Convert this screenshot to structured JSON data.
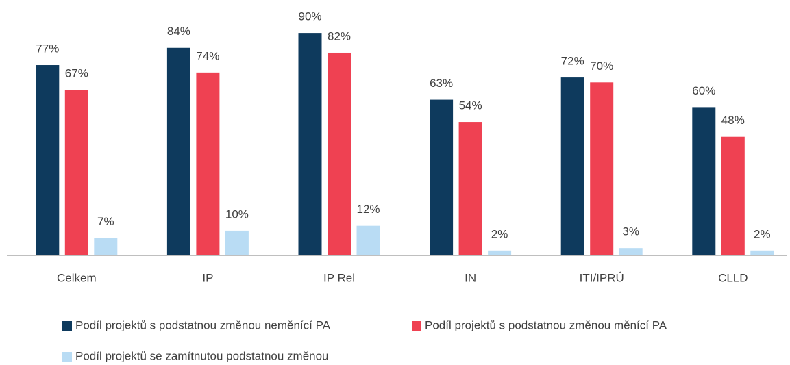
{
  "chart_data": {
    "type": "bar",
    "categories": [
      "Celkem",
      "IP",
      "IP Rel",
      "IN",
      "ITI/IPRÚ",
      "CLLD"
    ],
    "series": [
      {
        "name": "Podíl projektů s podstatnou změnou neměnící PA",
        "color": "#0e3a5d",
        "values": [
          77,
          84,
          90,
          63,
          72,
          60
        ],
        "value_labels": [
          "77%",
          "84%",
          "90%",
          "63%",
          "72%",
          "60%"
        ]
      },
      {
        "name": "Podíl projektů s podstatnou změnou měnící PA",
        "color": "#ef4152",
        "values": [
          67,
          74,
          82,
          54,
          70,
          48
        ],
        "value_labels": [
          "67%",
          "74%",
          "82%",
          "54%",
          "70%",
          "48%"
        ]
      },
      {
        "name": "Podíl projektů se zamítnutou podstatnou změnou",
        "color": "#b9dcf4",
        "values": [
          7,
          10,
          12,
          2,
          3,
          2
        ],
        "value_labels": [
          "7%",
          "10%",
          "12%",
          "2%",
          "3%",
          "2%"
        ]
      }
    ]
  }
}
